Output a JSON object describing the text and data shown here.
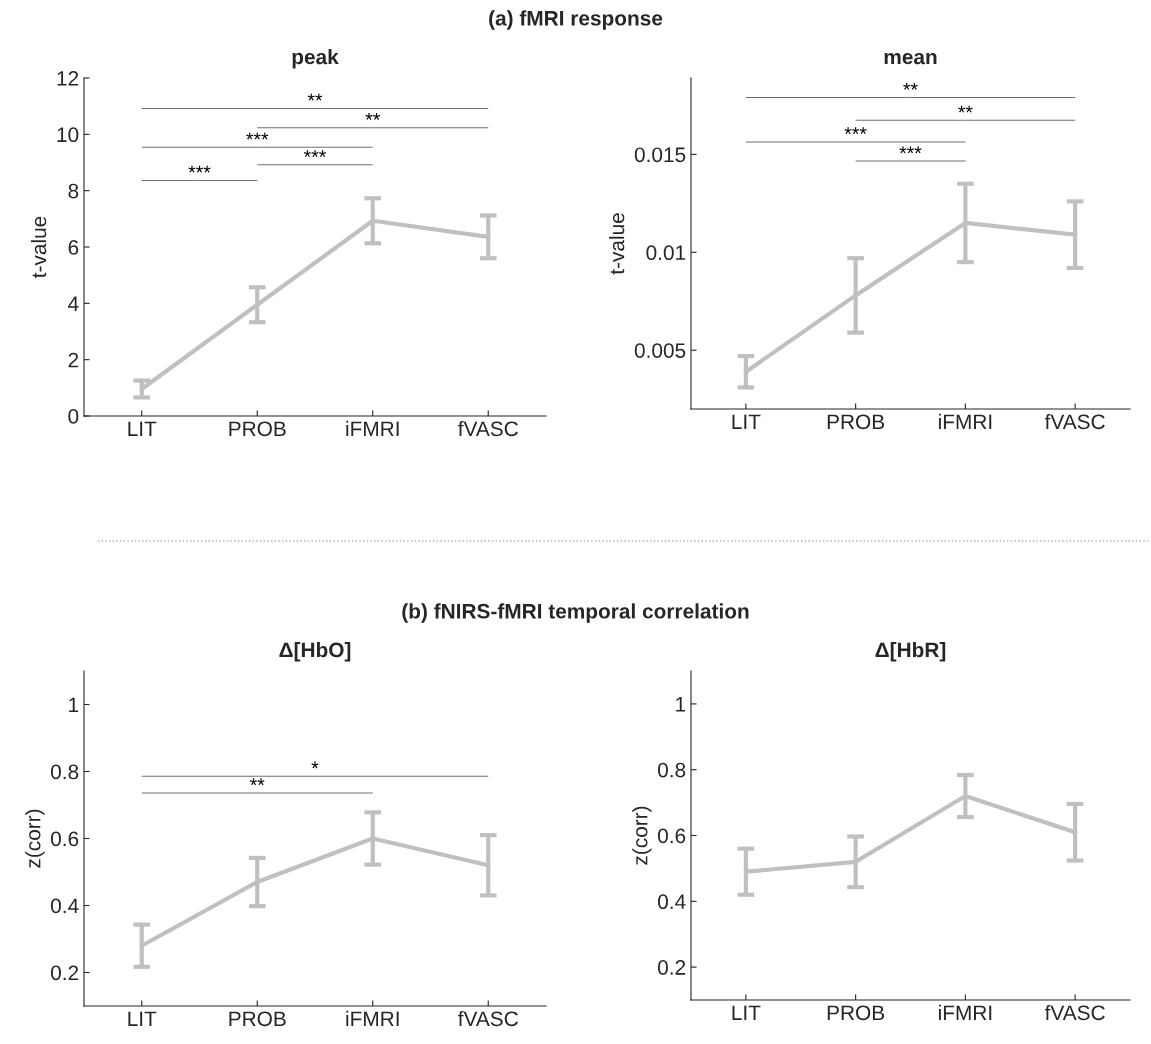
{
  "chart_data": [
    {
      "type": "line",
      "title": "(a) fMRI response",
      "subtitle": "peak",
      "ylabel": "t-value",
      "categories": [
        "LIT",
        "PROB",
        "iFMRI",
        "fVASC"
      ],
      "series": [
        {
          "color": "#c0c0c0",
          "values": [
            0.96,
            3.95,
            6.93,
            6.36
          ],
          "errors": [
            0.3,
            0.62,
            0.8,
            0.76
          ]
        }
      ],
      "ylim": [
        0,
        12
      ],
      "yticks": [
        0,
        2,
        4,
        6,
        8,
        10,
        12
      ],
      "grid": false,
      "legend": false,
      "marker": "none",
      "line_style": "solid",
      "annotations": [
        "**",
        "**",
        "***",
        "***",
        "***"
      ]
    },
    {
      "type": "line",
      "subtitle": "mean",
      "ylabel": "t-value",
      "categories": [
        "LIT",
        "PROB",
        "iFMRI",
        "fVASC"
      ],
      "series": [
        {
          "color": "#c0c0c0",
          "values": [
            0.0039,
            0.0078,
            0.0115,
            0.0109
          ],
          "errors": [
            0.0008,
            0.0019,
            0.002,
            0.0017
          ]
        }
      ],
      "ylim": [
        0.002,
        0.0189
      ],
      "yticks": [
        0.005,
        0.01,
        0.015
      ],
      "grid": false,
      "legend": false,
      "marker": "none",
      "line_style": "solid",
      "annotations": [
        "**",
        "**",
        "***",
        "***"
      ]
    },
    {
      "type": "line",
      "title": "(b) fNIRS-fMRI temporal correlation",
      "subtitle": "Δ[HbO]",
      "ylabel": "z(corr)",
      "categories": [
        "LIT",
        "PROB",
        "iFMRI",
        "fVASC"
      ],
      "series": [
        {
          "color": "#c0c0c0",
          "values": [
            0.28,
            0.47,
            0.6,
            0.52
          ],
          "errors": [
            0.063,
            0.072,
            0.078,
            0.09
          ]
        }
      ],
      "ylim": [
        0.1,
        1.1
      ],
      "yticks": [
        0.2,
        0.4,
        0.6,
        0.8,
        1
      ],
      "grid": false,
      "legend": false,
      "marker": "none",
      "line_style": "solid",
      "annotations": [
        "*",
        "**"
      ]
    },
    {
      "type": "line",
      "subtitle": "Δ[HbR]",
      "ylabel": "z(corr)",
      "categories": [
        "LIT",
        "PROB",
        "iFMRI",
        "fVASC"
      ],
      "series": [
        {
          "color": "#c0c0c0",
          "values": [
            0.49,
            0.52,
            0.72,
            0.61
          ],
          "errors": [
            0.07,
            0.077,
            0.064,
            0.086
          ]
        }
      ],
      "ylim": [
        0.1,
        1.1
      ],
      "yticks": [
        0.2,
        0.4,
        0.6,
        0.8,
        1
      ],
      "grid": false,
      "legend": false,
      "marker": "none",
      "line_style": "solid"
    }
  ]
}
